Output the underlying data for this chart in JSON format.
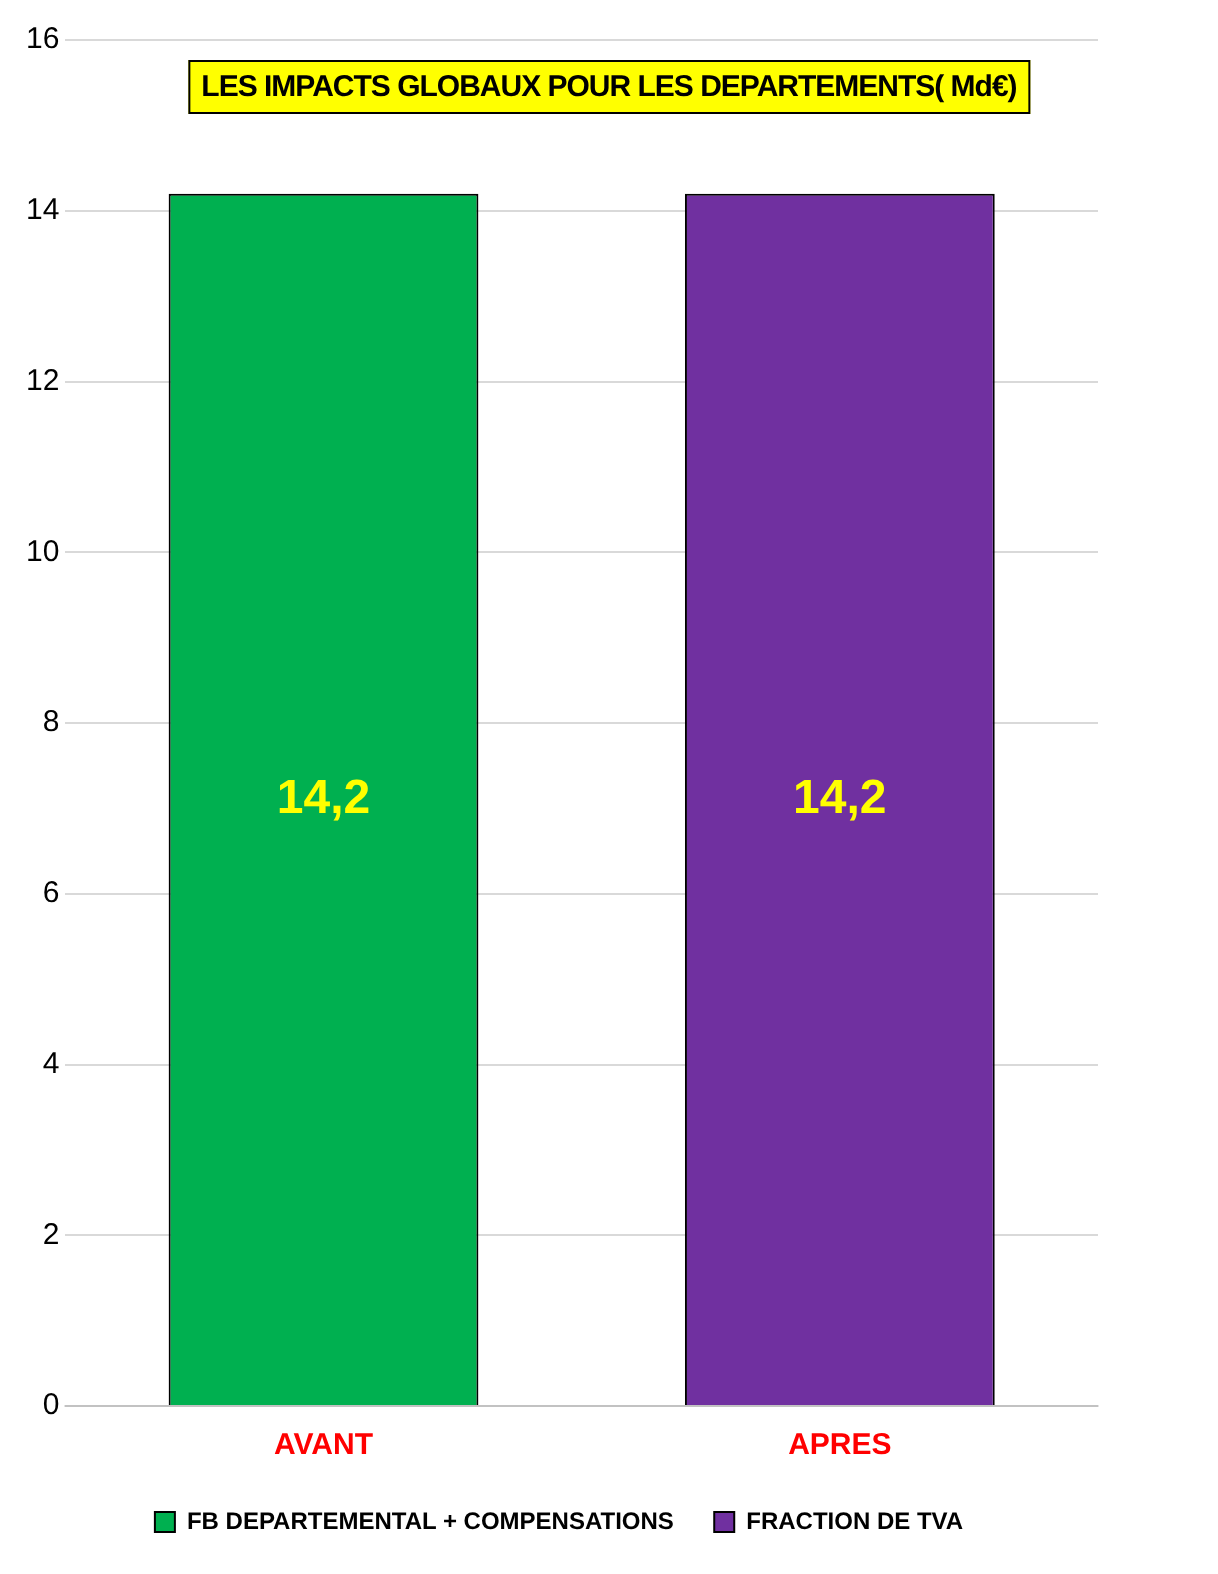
{
  "chart_data": {
    "type": "bar",
    "title": "LES IMPACTS GLOBAUX POUR LES DEPARTEMENTS( Md€)",
    "categories": [
      "AVANT",
      "APRES"
    ],
    "series": [
      {
        "name": "FB DEPARTEMENTAL + COMPENSATIONS",
        "color": "#00b050",
        "values": [
          14.2,
          null
        ],
        "value_labels": [
          "14,2",
          null
        ]
      },
      {
        "name": "FRACTION DE TVA",
        "color": "#7030a0",
        "values": [
          null,
          14.2
        ],
        "value_labels": [
          null,
          "14,2"
        ]
      }
    ],
    "ylim": [
      0,
      16
    ],
    "yticks": [
      0,
      2,
      4,
      6,
      8,
      10,
      12,
      14,
      16
    ],
    "grid": "y",
    "legend": "bottom"
  }
}
